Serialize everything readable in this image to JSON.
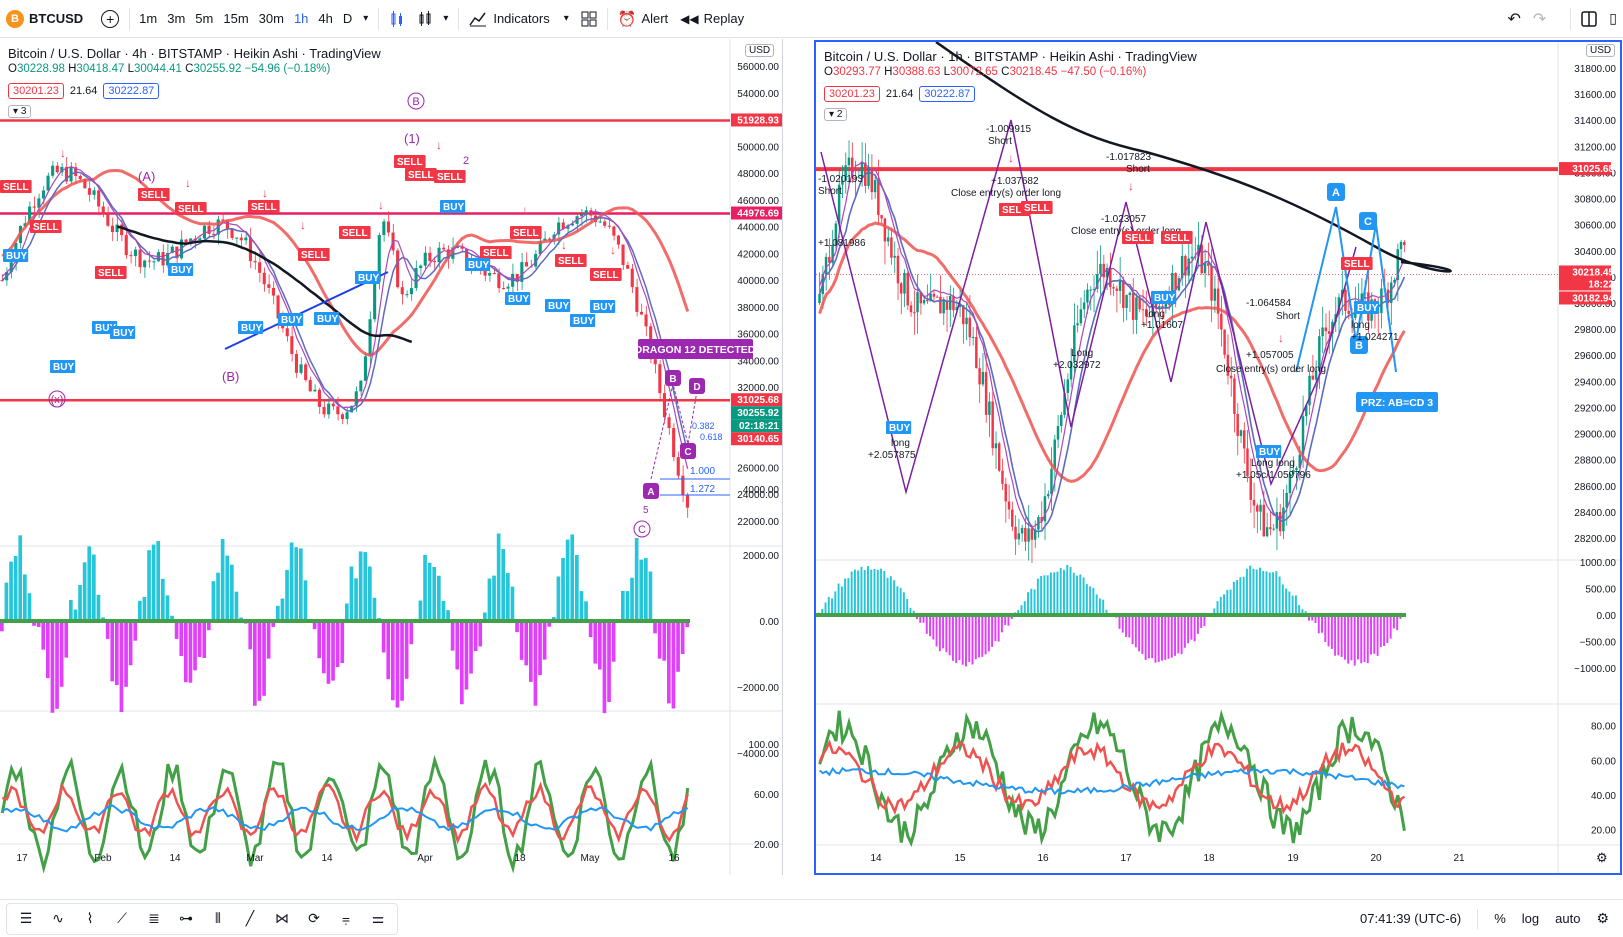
{
  "toolbar": {
    "symbol": "BTCUSD",
    "symbol_logo": "B",
    "add_icon": "plus-circle-icon",
    "timeframes": [
      "1m",
      "3m",
      "5m",
      "15m",
      "30m",
      "1h",
      "4h",
      "D"
    ],
    "active_timeframe": "1h",
    "indicators_label": "Indicators",
    "alert_label": "Alert",
    "replay_label": "Replay",
    "undo_icon": "undo-icon",
    "redo_icon": "redo-icon"
  },
  "left_chart": {
    "title": "Bitcoin / U.S. Dollar · 4h · BITSTAMP · Heikin Ashi · TradingView",
    "ohlc": {
      "o": "30228.98",
      "h": "30418.47",
      "l": "30044.41",
      "c": "30255.92",
      "chg": "−54.96 (−0.18%)"
    },
    "pill_bid": "30201.23",
    "spread": "21.64",
    "pill_ask": "30222.87",
    "hidden_count": "3",
    "currency": "USD",
    "price_ticks": [
      "56000.00",
      "54000.00",
      "52000.00",
      "50000.00",
      "48000.00",
      "46000.00",
      "44000.00",
      "42000.00",
      "40000.00",
      "38000.00",
      "36000.00",
      "34000.00",
      "32000.00",
      "30000.00",
      "28000.00",
      "26000.00",
      "24000.00",
      "22000.00"
    ],
    "price_labels": [
      {
        "text": "51928.93",
        "color": "#f23645"
      },
      {
        "text": "44976.69",
        "color": "#e91e63"
      },
      {
        "text": "31025.68",
        "color": "#f23645"
      },
      {
        "text": "30255.92",
        "color": "#089981"
      },
      {
        "text": "02:18:21",
        "color": "#089981"
      },
      {
        "text": "30140.65",
        "color": "#f23645"
      }
    ],
    "osc_ticks": [
      "4000.00",
      "2000.00",
      "0.00",
      "−2000.00",
      "−4000.00"
    ],
    "rsi_ticks": [
      "100.00",
      "60.00",
      "20.00"
    ],
    "time_ticks": [
      "17",
      "Feb",
      "14",
      "Mar",
      "14",
      "Apr",
      "18",
      "May",
      "16"
    ],
    "banner": "DRAGON 12 DETECTED",
    "labels": {
      "b_circle": "B",
      "b_paren": "(B)",
      "a_paren": "(A)",
      "one_paren": "(1)",
      "x_paren": "(x)",
      "c_circle": "C",
      "two": "2",
      "five": "5",
      "a_pattern": "A",
      "b_pattern": "B",
      "c_pattern": "C",
      "d_pattern": "D"
    },
    "fib_labels": [
      "1.000",
      "1.272",
      "0.382",
      "0.618"
    ]
  },
  "right_chart": {
    "title": "Bitcoin / U.S. Dollar · 1h · BITSTAMP · Heikin Ashi · TradingView",
    "ohlc": {
      "o": "30293.77",
      "h": "30388.63",
      "l": "30072.65",
      "c": "30218.45",
      "chg": "−47.50 (−0.16%)"
    },
    "pill_bid": "30201.23",
    "spread": "21.64",
    "pill_ask": "30222.87",
    "hidden_count": "2",
    "currency": "USD",
    "price_ticks": [
      "31800.00",
      "31600.00",
      "31400.00",
      "31200.00",
      "31000.00",
      "30800.00",
      "30600.00",
      "30400.00",
      "30200.00",
      "30000.00",
      "29800.00",
      "29600.00",
      "29400.00",
      "29200.00",
      "29000.00",
      "28800.00",
      "28600.00",
      "28400.00",
      "28200.00"
    ],
    "price_labels": [
      {
        "text": "31025.68",
        "color": "#f23645"
      },
      {
        "text": "30218.45",
        "color": "#f23645"
      },
      {
        "text": "18:22",
        "color": "#f23645"
      },
      {
        "text": "30182.94",
        "color": "#f23645"
      }
    ],
    "osc_ticks": [
      "1000.00",
      "500.00",
      "0.00",
      "−500.00",
      "−1000.00"
    ],
    "rsi_ticks": [
      "80.00",
      "60.00",
      "40.00",
      "20.00"
    ],
    "time_ticks": [
      "14",
      "15",
      "16",
      "17",
      "18",
      "19",
      "20",
      "21"
    ],
    "prz_label": "PRZ: AB=CD 3",
    "annotations": [
      "-1.020193",
      "Short",
      "-1.009915",
      "Short",
      "+1.037682",
      "Close entry(s) order long",
      "-1.017823",
      "Short",
      "-1.023057",
      "Close entry(s) order long",
      "+1.081986",
      "entry(s) order long",
      "long",
      "+2.057875",
      "Long",
      "+2.032972",
      "long",
      "+1.01607",
      "-1.064584",
      "Short",
      "+1.057005",
      "Close entry(s) order long",
      "Long long",
      "+1.05c/1.059796",
      "long",
      "+1.024271"
    ],
    "pattern_labels": {
      "a": "A",
      "b": "B",
      "c": "C"
    }
  },
  "bottom": {
    "clock": "07:41:39 (UTC-6)",
    "percent": "%",
    "log": "log",
    "auto": "auto",
    "tools": [
      "list-icon",
      "wave-abc-icon",
      "wave-12345-icon",
      "trend-icon",
      "fib-icon",
      "horizontal-icon",
      "bars-pattern-icon",
      "line-icon",
      "xabcd-icon",
      "cycle-icon",
      "regression-icon",
      "settings-list-icon"
    ]
  },
  "colors": {
    "up": "#089981",
    "down": "#f23645",
    "accent": "#2962ff",
    "ema_black": "#131722",
    "sell": "#f23645",
    "buy": "#2196f3",
    "purple": "#9c27b0"
  }
}
